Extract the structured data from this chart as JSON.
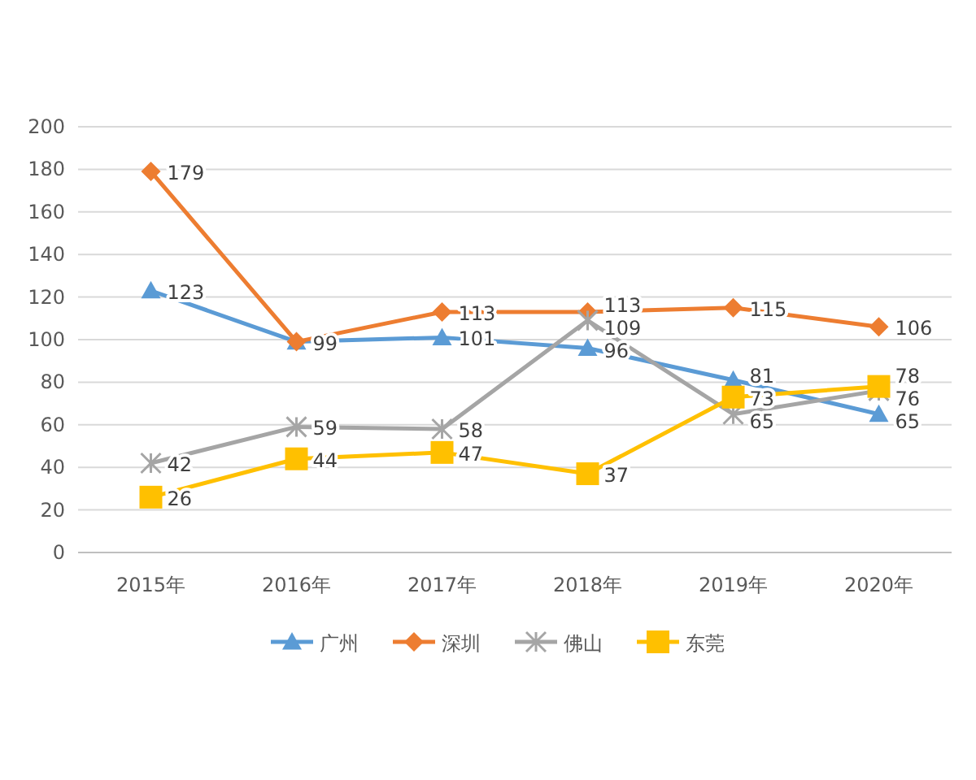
{
  "chart_data": {
    "type": "line",
    "categories": [
      "2015年",
      "2016年",
      "2017年",
      "2018年",
      "2019年",
      "2020年"
    ],
    "series": [
      {
        "name": "广州",
        "color": "#5b9bd5",
        "marker": "triangle",
        "values": [
          123,
          99,
          101,
          96,
          81,
          65
        ],
        "value_labels": [
          "123",
          "99",
          "101",
          "96",
          "81",
          "65"
        ]
      },
      {
        "name": "深圳",
        "color": "#ed7d31",
        "marker": "diamond",
        "values": [
          179,
          99,
          113,
          113,
          115,
          106
        ],
        "value_labels": [
          "179",
          null,
          "113",
          "113",
          "115",
          "106"
        ]
      },
      {
        "name": "佛山",
        "color": "#a5a5a5",
        "marker": "cross",
        "values": [
          42,
          59,
          58,
          109,
          65,
          76
        ],
        "value_labels": [
          "42",
          "59",
          "58",
          "109",
          "65",
          "76"
        ]
      },
      {
        "name": "东莞",
        "color": "#ffc000",
        "marker": "square",
        "values": [
          26,
          44,
          47,
          37,
          73,
          78
        ],
        "value_labels": [
          "26",
          "44",
          "47",
          "37",
          "73",
          "78"
        ]
      }
    ],
    "ylim": [
      0,
      200
    ],
    "yticks": [
      0,
      20,
      40,
      60,
      80,
      100,
      120,
      140,
      160,
      180,
      200
    ],
    "grid": "y",
    "legend": "bottom",
    "line_style": "solid"
  }
}
